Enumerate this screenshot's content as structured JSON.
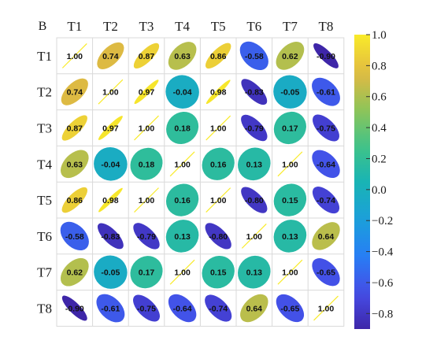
{
  "panel_label": "B",
  "chart_data": {
    "type": "heatmap",
    "subtype": "correlation-ellipse-matrix",
    "title": "",
    "xlabel": "",
    "ylabel": "",
    "variables": [
      "T1",
      "T2",
      "T3",
      "T4",
      "T5",
      "T6",
      "T7",
      "T8"
    ],
    "matrix": [
      [
        1.0,
        0.74,
        0.87,
        0.63,
        0.86,
        -0.58,
        0.62,
        -0.9
      ],
      [
        0.74,
        1.0,
        0.97,
        -0.04,
        0.98,
        -0.83,
        -0.05,
        -0.61
      ],
      [
        0.87,
        0.97,
        1.0,
        0.18,
        1.0,
        -0.79,
        0.17,
        -0.75
      ],
      [
        0.63,
        -0.04,
        0.18,
        1.0,
        0.16,
        0.13,
        1.0,
        -0.64
      ],
      [
        0.86,
        0.98,
        1.0,
        0.16,
        1.0,
        -0.8,
        0.15,
        -0.74
      ],
      [
        -0.58,
        -0.83,
        -0.79,
        0.13,
        -0.8,
        1.0,
        0.13,
        0.64
      ],
      [
        0.62,
        -0.05,
        0.17,
        1.0,
        0.15,
        0.13,
        1.0,
        -0.65
      ],
      [
        -0.9,
        -0.61,
        -0.75,
        -0.64,
        -0.74,
        0.64,
        -0.65,
        1.0
      ]
    ],
    "value_labels": [
      [
        "1.00",
        "0.74",
        "0.87",
        "0.63",
        "0.86",
        "-0.58",
        "0.62",
        "-0.90"
      ],
      [
        "0.74",
        "1.00",
        "0.97",
        "-0.04",
        "0.98",
        "-0.83",
        "-0.05",
        "-0.61"
      ],
      [
        "0.87",
        "0.97",
        "1.00",
        "0.18",
        "1.00",
        "-0.79",
        "0.17",
        "-0.75"
      ],
      [
        "0.63",
        "-0.04",
        "0.18",
        "1.00",
        "0.16",
        "0.13",
        "1.00",
        "-0.64"
      ],
      [
        "0.86",
        "0.98",
        "1.00",
        "0.16",
        "1.00",
        "-0.80",
        "0.15",
        "-0.74"
      ],
      [
        "-0.58",
        "-0.83",
        "-0.79",
        "0.13",
        "-0.80",
        "1.00",
        "0.13",
        "0.64"
      ],
      [
        "0.62",
        "-0.05",
        "0.17",
        "1.00",
        "0.15",
        "0.13",
        "1.00",
        "-0.65"
      ],
      [
        "-0.90",
        "-0.61",
        "-0.75",
        "-0.64",
        "-0.74",
        "0.64",
        "-0.65",
        "1.00"
      ]
    ],
    "colorbar": {
      "min": -0.9,
      "max": 1.0,
      "ticks": [
        1.0,
        0.8,
        0.6,
        0.4,
        0.2,
        0.0,
        -0.2,
        -0.4,
        -0.6,
        -0.8
      ],
      "tick_labels": [
        "1.0",
        "0.8",
        "0.6",
        "0.4",
        "0.2",
        "0.0",
        "−0.2",
        "−0.4",
        "−0.6",
        "−0.8"
      ],
      "colormap": "parula"
    },
    "grid": true
  }
}
